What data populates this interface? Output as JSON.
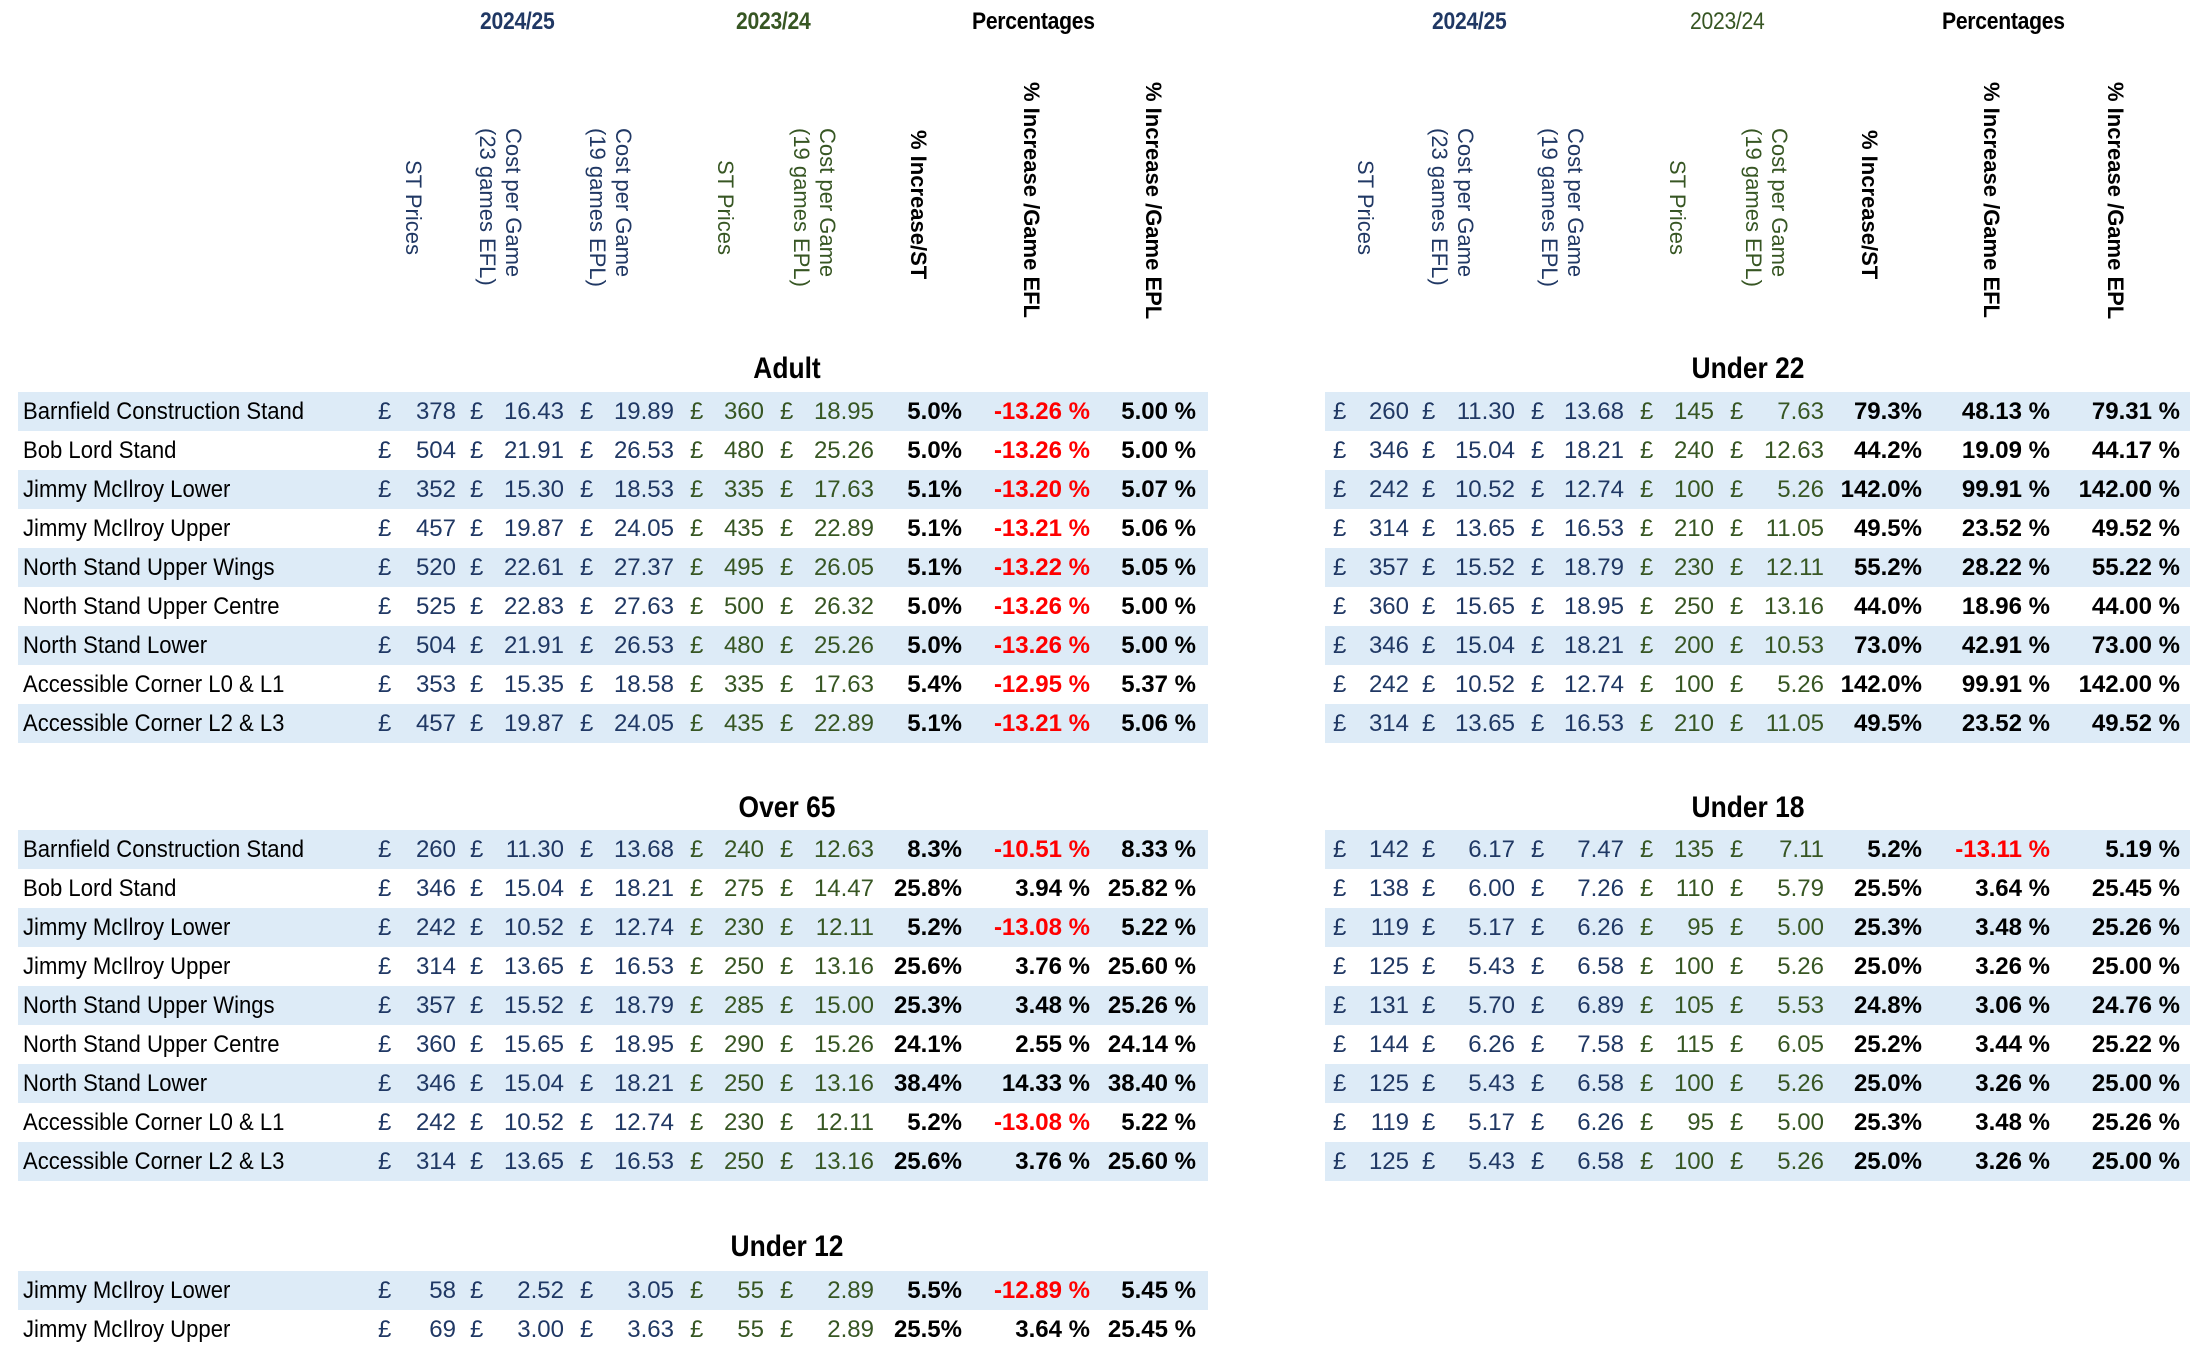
{
  "colors": {
    "current_season": "#203864",
    "previous_season": "#375623",
    "negative": "#ff0000",
    "band": "#ddebf7"
  },
  "left_header": {
    "season_current": "2024/25",
    "season_previous": "2023/24",
    "percentages": "Percentages",
    "columns": [
      "ST Prices",
      "Cost per Game\n(23 games EFL)",
      "Cost per Game\n(19 games EPL)",
      "ST Prices",
      "Cost per Game\n(19 games EPL)",
      "% Increase/ST",
      "% Increase /Game EFL",
      "% Increase /Game EPL"
    ]
  },
  "right_header": {
    "season_current": "2024/25",
    "season_previous": "2023/24",
    "percentages": "Percentages",
    "columns": [
      "ST Prices",
      "Cost per Game\n(23 games EFL)",
      "Cost per Game\n(19 games EPL)",
      "ST Prices",
      "Cost per Game\n(19 games EPL)",
      "% Increase/ST",
      "% Increase /Game EFL",
      "% Increase /Game EPL"
    ]
  },
  "sections": {
    "adult": {
      "title": "Adult",
      "rows": [
        {
          "stand": "Barnfield Construction Stand",
          "st_2425": "378",
          "efl_2425": "16.43",
          "epl_2425": "19.89",
          "st_2324": "360",
          "epl_2324": "18.95",
          "inc_st": "5.0%",
          "inc_efl": "-13.26 %",
          "inc_epl": "5.00 %"
        },
        {
          "stand": "Bob Lord Stand",
          "st_2425": "504",
          "efl_2425": "21.91",
          "epl_2425": "26.53",
          "st_2324": "480",
          "epl_2324": "25.26",
          "inc_st": "5.0%",
          "inc_efl": "-13.26 %",
          "inc_epl": "5.00 %"
        },
        {
          "stand": "Jimmy McIlroy Lower",
          "st_2425": "352",
          "efl_2425": "15.30",
          "epl_2425": "18.53",
          "st_2324": "335",
          "epl_2324": "17.63",
          "inc_st": "5.1%",
          "inc_efl": "-13.20 %",
          "inc_epl": "5.07 %"
        },
        {
          "stand": "Jimmy McIlroy Upper",
          "st_2425": "457",
          "efl_2425": "19.87",
          "epl_2425": "24.05",
          "st_2324": "435",
          "epl_2324": "22.89",
          "inc_st": "5.1%",
          "inc_efl": "-13.21 %",
          "inc_epl": "5.06 %"
        },
        {
          "stand": "North Stand Upper Wings",
          "st_2425": "520",
          "efl_2425": "22.61",
          "epl_2425": "27.37",
          "st_2324": "495",
          "epl_2324": "26.05",
          "inc_st": "5.1%",
          "inc_efl": "-13.22 %",
          "inc_epl": "5.05 %"
        },
        {
          "stand": "North Stand Upper Centre",
          "st_2425": "525",
          "efl_2425": "22.83",
          "epl_2425": "27.63",
          "st_2324": "500",
          "epl_2324": "26.32",
          "inc_st": "5.0%",
          "inc_efl": "-13.26 %",
          "inc_epl": "5.00 %"
        },
        {
          "stand": "North Stand Lower",
          "st_2425": "504",
          "efl_2425": "21.91",
          "epl_2425": "26.53",
          "st_2324": "480",
          "epl_2324": "25.26",
          "inc_st": "5.0%",
          "inc_efl": "-13.26 %",
          "inc_epl": "5.00 %"
        },
        {
          "stand": "Accessible Corner L0 & L1",
          "st_2425": "353",
          "efl_2425": "15.35",
          "epl_2425": "18.58",
          "st_2324": "335",
          "epl_2324": "17.63",
          "inc_st": "5.4%",
          "inc_efl": "-12.95 %",
          "inc_epl": "5.37 %"
        },
        {
          "stand": "Accessible Corner L2 & L3",
          "st_2425": "457",
          "efl_2425": "19.87",
          "epl_2425": "24.05",
          "st_2324": "435",
          "epl_2324": "22.89",
          "inc_st": "5.1%",
          "inc_efl": "-13.21 %",
          "inc_epl": "5.06 %"
        }
      ]
    },
    "over65": {
      "title": "Over 65",
      "rows": [
        {
          "stand": "Barnfield Construction Stand",
          "st_2425": "260",
          "efl_2425": "11.30",
          "epl_2425": "13.68",
          "st_2324": "240",
          "epl_2324": "12.63",
          "inc_st": "8.3%",
          "inc_efl": "-10.51 %",
          "inc_epl": "8.33 %"
        },
        {
          "stand": "Bob Lord Stand",
          "st_2425": "346",
          "efl_2425": "15.04",
          "epl_2425": "18.21",
          "st_2324": "275",
          "epl_2324": "14.47",
          "inc_st": "25.8%",
          "inc_efl": "3.94 %",
          "inc_epl": "25.82 %"
        },
        {
          "stand": "Jimmy McIlroy Lower",
          "st_2425": "242",
          "efl_2425": "10.52",
          "epl_2425": "12.74",
          "st_2324": "230",
          "epl_2324": "12.11",
          "inc_st": "5.2%",
          "inc_efl": "-13.08 %",
          "inc_epl": "5.22 %"
        },
        {
          "stand": "Jimmy McIlroy Upper",
          "st_2425": "314",
          "efl_2425": "13.65",
          "epl_2425": "16.53",
          "st_2324": "250",
          "epl_2324": "13.16",
          "inc_st": "25.6%",
          "inc_efl": "3.76 %",
          "inc_epl": "25.60 %"
        },
        {
          "stand": "North Stand Upper Wings",
          "st_2425": "357",
          "efl_2425": "15.52",
          "epl_2425": "18.79",
          "st_2324": "285",
          "epl_2324": "15.00",
          "inc_st": "25.3%",
          "inc_efl": "3.48 %",
          "inc_epl": "25.26 %"
        },
        {
          "stand": "North Stand Upper Centre",
          "st_2425": "360",
          "efl_2425": "15.65",
          "epl_2425": "18.95",
          "st_2324": "290",
          "epl_2324": "15.26",
          "inc_st": "24.1%",
          "inc_efl": "2.55 %",
          "inc_epl": "24.14 %"
        },
        {
          "stand": "North Stand Lower",
          "st_2425": "346",
          "efl_2425": "15.04",
          "epl_2425": "18.21",
          "st_2324": "250",
          "epl_2324": "13.16",
          "inc_st": "38.4%",
          "inc_efl": "14.33 %",
          "inc_epl": "38.40 %"
        },
        {
          "stand": "Accessible Corner L0 & L1",
          "st_2425": "242",
          "efl_2425": "10.52",
          "epl_2425": "12.74",
          "st_2324": "230",
          "epl_2324": "12.11",
          "inc_st": "5.2%",
          "inc_efl": "-13.08 %",
          "inc_epl": "5.22 %"
        },
        {
          "stand": "Accessible Corner L2 & L3",
          "st_2425": "314",
          "efl_2425": "13.65",
          "epl_2425": "16.53",
          "st_2324": "250",
          "epl_2324": "13.16",
          "inc_st": "25.6%",
          "inc_efl": "3.76 %",
          "inc_epl": "25.60 %"
        }
      ]
    },
    "under12": {
      "title": "Under 12",
      "rows": [
        {
          "stand": "Jimmy McIlroy Lower",
          "st_2425": "58",
          "efl_2425": "2.52",
          "epl_2425": "3.05",
          "st_2324": "55",
          "epl_2324": "2.89",
          "inc_st": "5.5%",
          "inc_efl": "-12.89 %",
          "inc_epl": "5.45 %"
        },
        {
          "stand": "Jimmy McIlroy Upper",
          "st_2425": "69",
          "efl_2425": "3.00",
          "epl_2425": "3.63",
          "st_2324": "55",
          "epl_2324": "2.89",
          "inc_st": "25.5%",
          "inc_efl": "3.64 %",
          "inc_epl": "25.45 %"
        }
      ]
    },
    "under22": {
      "title": "Under 22",
      "rows": [
        {
          "st_2425": "260",
          "efl_2425": "11.30",
          "epl_2425": "13.68",
          "st_2324": "145",
          "epl_2324": "7.63",
          "inc_st": "79.3%",
          "inc_efl": "48.13 %",
          "inc_epl": "79.31 %"
        },
        {
          "st_2425": "346",
          "efl_2425": "15.04",
          "epl_2425": "18.21",
          "st_2324": "240",
          "epl_2324": "12.63",
          "inc_st": "44.2%",
          "inc_efl": "19.09 %",
          "inc_epl": "44.17 %"
        },
        {
          "st_2425": "242",
          "efl_2425": "10.52",
          "epl_2425": "12.74",
          "st_2324": "100",
          "epl_2324": "5.26",
          "inc_st": "142.0%",
          "inc_efl": "99.91 %",
          "inc_epl": "142.00 %"
        },
        {
          "st_2425": "314",
          "efl_2425": "13.65",
          "epl_2425": "16.53",
          "st_2324": "210",
          "epl_2324": "11.05",
          "inc_st": "49.5%",
          "inc_efl": "23.52 %",
          "inc_epl": "49.52 %"
        },
        {
          "st_2425": "357",
          "efl_2425": "15.52",
          "epl_2425": "18.79",
          "st_2324": "230",
          "epl_2324": "12.11",
          "inc_st": "55.2%",
          "inc_efl": "28.22 %",
          "inc_epl": "55.22 %"
        },
        {
          "st_2425": "360",
          "efl_2425": "15.65",
          "epl_2425": "18.95",
          "st_2324": "250",
          "epl_2324": "13.16",
          "inc_st": "44.0%",
          "inc_efl": "18.96 %",
          "inc_epl": "44.00 %"
        },
        {
          "st_2425": "346",
          "efl_2425": "15.04",
          "epl_2425": "18.21",
          "st_2324": "200",
          "epl_2324": "10.53",
          "inc_st": "73.0%",
          "inc_efl": "42.91 %",
          "inc_epl": "73.00 %"
        },
        {
          "st_2425": "242",
          "efl_2425": "10.52",
          "epl_2425": "12.74",
          "st_2324": "100",
          "epl_2324": "5.26",
          "inc_st": "142.0%",
          "inc_efl": "99.91 %",
          "inc_epl": "142.00 %"
        },
        {
          "st_2425": "314",
          "efl_2425": "13.65",
          "epl_2425": "16.53",
          "st_2324": "210",
          "epl_2324": "11.05",
          "inc_st": "49.5%",
          "inc_efl": "23.52 %",
          "inc_epl": "49.52 %"
        }
      ]
    },
    "under18": {
      "title": "Under 18",
      "rows": [
        {
          "st_2425": "142",
          "efl_2425": "6.17",
          "epl_2425": "7.47",
          "st_2324": "135",
          "epl_2324": "7.11",
          "inc_st": "5.2%",
          "inc_efl": "-13.11 %",
          "inc_epl": "5.19 %"
        },
        {
          "st_2425": "138",
          "efl_2425": "6.00",
          "epl_2425": "7.26",
          "st_2324": "110",
          "epl_2324": "5.79",
          "inc_st": "25.5%",
          "inc_efl": "3.64 %",
          "inc_epl": "25.45 %"
        },
        {
          "st_2425": "119",
          "efl_2425": "5.17",
          "epl_2425": "6.26",
          "st_2324": "95",
          "epl_2324": "5.00",
          "inc_st": "25.3%",
          "inc_efl": "3.48 %",
          "inc_epl": "25.26 %"
        },
        {
          "st_2425": "125",
          "efl_2425": "5.43",
          "epl_2425": "6.58",
          "st_2324": "100",
          "epl_2324": "5.26",
          "inc_st": "25.0%",
          "inc_efl": "3.26 %",
          "inc_epl": "25.00 %"
        },
        {
          "st_2425": "131",
          "efl_2425": "5.70",
          "epl_2425": "6.89",
          "st_2324": "105",
          "epl_2324": "5.53",
          "inc_st": "24.8%",
          "inc_efl": "3.06 %",
          "inc_epl": "24.76 %"
        },
        {
          "st_2425": "144",
          "efl_2425": "6.26",
          "epl_2425": "7.58",
          "st_2324": "115",
          "epl_2324": "6.05",
          "inc_st": "25.2%",
          "inc_efl": "3.44 %",
          "inc_epl": "25.22 %"
        },
        {
          "st_2425": "125",
          "efl_2425": "5.43",
          "epl_2425": "6.58",
          "st_2324": "100",
          "epl_2324": "5.26",
          "inc_st": "25.0%",
          "inc_efl": "3.26 %",
          "inc_epl": "25.00 %"
        },
        {
          "st_2425": "119",
          "efl_2425": "5.17",
          "epl_2425": "6.26",
          "st_2324": "95",
          "epl_2324": "5.00",
          "inc_st": "25.3%",
          "inc_efl": "3.48 %",
          "inc_epl": "25.26 %"
        },
        {
          "st_2425": "125",
          "efl_2425": "5.43",
          "epl_2425": "6.58",
          "st_2324": "100",
          "epl_2324": "5.26",
          "inc_st": "25.0%",
          "inc_efl": "3.26 %",
          "inc_epl": "25.00 %"
        }
      ]
    }
  },
  "currency_symbol": "£"
}
